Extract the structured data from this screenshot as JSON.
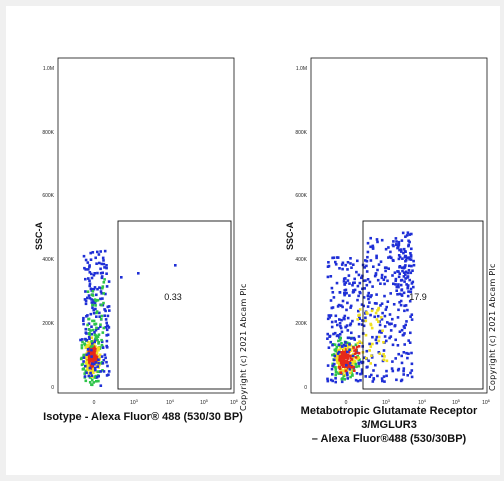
{
  "chart_data": [
    {
      "type": "scatter",
      "xlabel": "Isotype - Alexa Fluor® 488 (530/30 BP)",
      "ylabel": "SSC-A",
      "yticks": [
        "0",
        "200K",
        "400K",
        "600K",
        "800K",
        "1.0M"
      ],
      "xticks": [
        "0",
        "10^3",
        "10^4",
        "10^5",
        "10^6"
      ],
      "ylim": [
        0,
        1000000
      ],
      "xscale": "biexponential",
      "gate_label": "0.33",
      "gate_x_from": 500,
      "gate_y_range": [
        0,
        525000
      ]
    },
    {
      "type": "scatter",
      "xlabel_line1": "Metabotropic Glutamate Receptor 3/MGLUR3",
      "xlabel_line2": "– Alexa Fluor®488 (530/30BP)",
      "ylabel": "SSC-A",
      "yticks": [
        "0",
        "200K",
        "400K",
        "600K",
        "800K",
        "1.0M"
      ],
      "xticks": [
        "0",
        "10^3",
        "10^4",
        "10^5",
        "10^6"
      ],
      "ylim": [
        0,
        1000000
      ],
      "xscale": "biexponential",
      "gate_label": "17.9",
      "gate_x_from": 500,
      "gate_y_range": [
        0,
        525000
      ]
    }
  ],
  "watermark": "Copyright (c) 2021 Abcam Plc",
  "colors": {
    "low": "#1f2fd6",
    "mid": "#2ec44a",
    "high": "#f0e020",
    "peak": "#e52a1a"
  }
}
